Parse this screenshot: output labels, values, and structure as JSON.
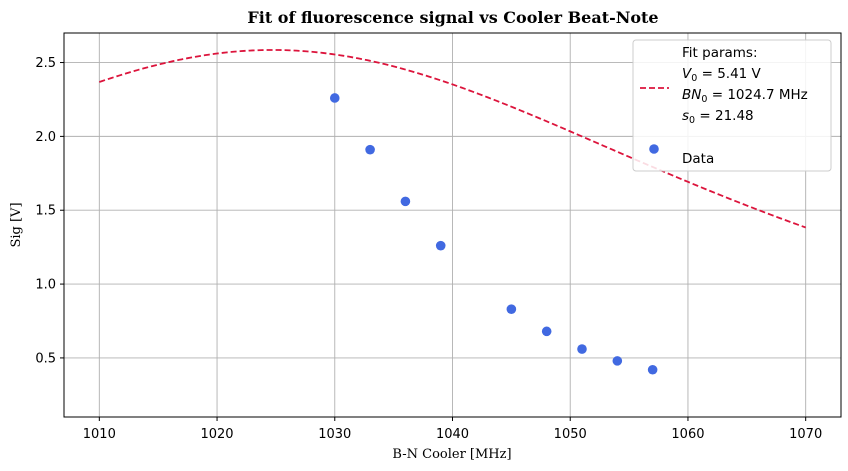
{
  "chart_data": {
    "type": "scatter",
    "title": "Fit of fluorescence signal vs Cooler Beat-Note",
    "xlabel": "B-N Cooler [MHz]",
    "ylabel": "Sig [V]",
    "xlim": [
      1007,
      1073
    ],
    "ylim": [
      0.1,
      2.7
    ],
    "xticks": [
      1010,
      1020,
      1030,
      1040,
      1050,
      1060,
      1070
    ],
    "yticks": [
      0.5,
      1.0,
      1.5,
      2.0,
      2.5
    ],
    "xtick_labels": [
      "1010",
      "1020",
      "1030",
      "1040",
      "1050",
      "1060",
      "1070"
    ],
    "ytick_labels": [
      "0.5",
      "1.0",
      "1.5",
      "2.0",
      "2.5"
    ],
    "grid": true,
    "legend_position": "top-right",
    "fit": {
      "name": "Fit params",
      "style": "dashed",
      "color": "#dc143c",
      "x_range": [
        1010,
        1070
      ],
      "V0": 5.41,
      "BN0": 1024.7,
      "s0": 21.48,
      "params_text": [
        {
          "sym": "V",
          "sub": "0",
          "rest": " = 5.41 V"
        },
        {
          "sym": "BN",
          "sub": "0",
          "rest": " = 1024.7 MHz"
        },
        {
          "sym": "s",
          "sub": "0",
          "rest": " = 21.48"
        }
      ]
    },
    "series": [
      {
        "name": "Data",
        "color": "#4169e1",
        "x": [
          1030,
          1033,
          1036,
          1039,
          1045,
          1048,
          1051,
          1054,
          1057
        ],
        "y": [
          2.26,
          1.91,
          1.56,
          1.26,
          0.83,
          0.68,
          0.56,
          0.48,
          0.42
        ]
      }
    ]
  }
}
